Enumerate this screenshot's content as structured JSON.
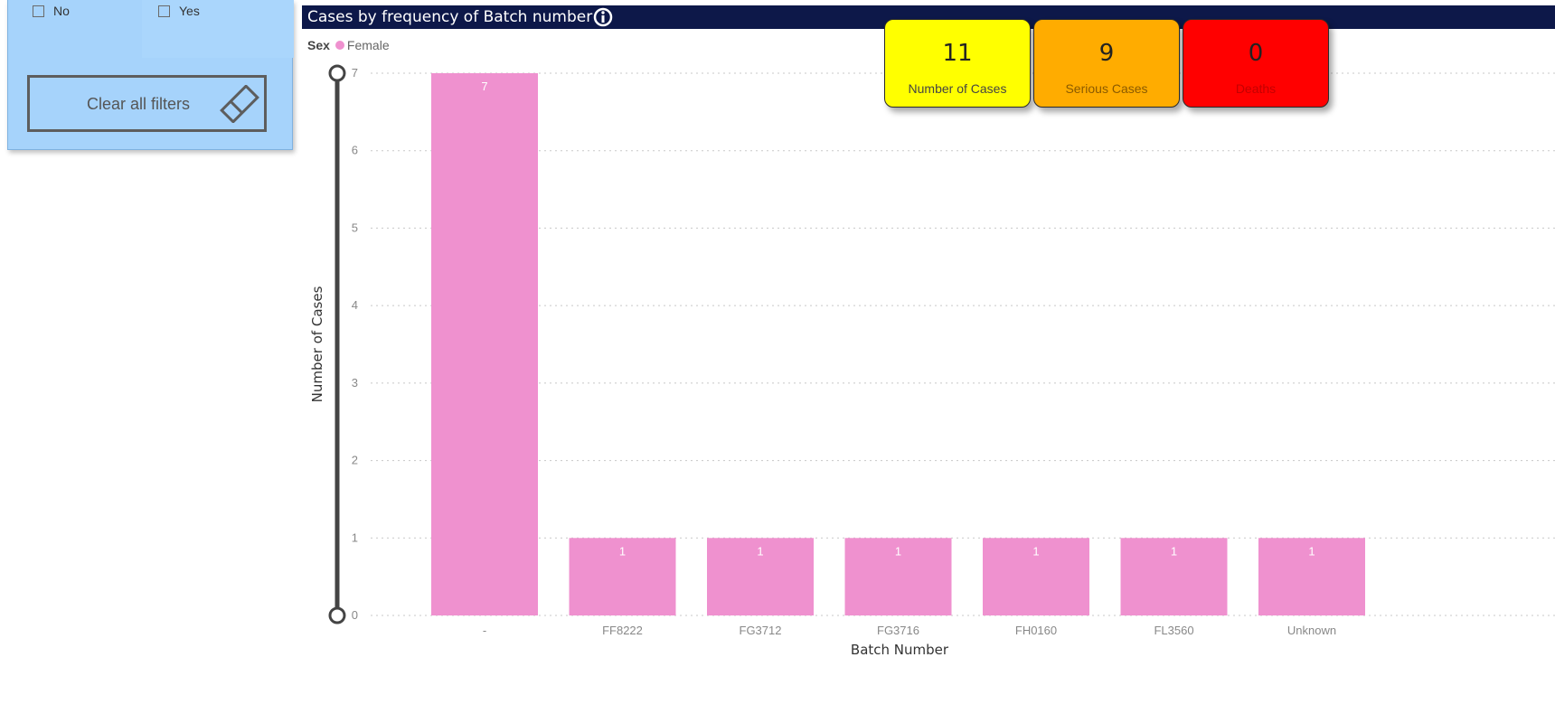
{
  "filter_panel": {
    "options": [
      {
        "label": "No",
        "checked": false
      },
      {
        "label": "Yes",
        "checked": false
      }
    ],
    "clear_button_label": "Clear all filters"
  },
  "chart_header": {
    "title": "Cases by frequency of Batch number",
    "info_icon": "info-icon"
  },
  "legend": {
    "title": "Sex",
    "items": [
      {
        "label": "Female",
        "color": "#ef91cf"
      }
    ]
  },
  "kpis": [
    {
      "value": "11",
      "label": "Number of Cases",
      "bg": "#ffff00",
      "label_color": "#444444"
    },
    {
      "value": "9",
      "label": "Serious Cases",
      "bg": "#ffac00",
      "label_color": "#8a5a00"
    },
    {
      "value": "0",
      "label": "Deaths",
      "bg": "#ff0000",
      "label_color": "#c40000"
    }
  ],
  "chart_data": {
    "type": "bar",
    "title": "Cases by frequency of Batch number",
    "xlabel": "Batch Number",
    "ylabel": "Number of Cases",
    "categories": [
      "-",
      "FF8222",
      "FG3712",
      "FG3716",
      "FH0160",
      "FL3560",
      "Unknown"
    ],
    "series": [
      {
        "name": "Female",
        "color": "#ef91cf",
        "values": [
          7,
          1,
          1,
          1,
          1,
          1,
          1
        ]
      }
    ],
    "ylim": [
      0,
      7
    ],
    "yticks": [
      0,
      1,
      2,
      3,
      4,
      5,
      6,
      7
    ],
    "grid": true,
    "data_labels": true,
    "legend_position": "top-left"
  }
}
